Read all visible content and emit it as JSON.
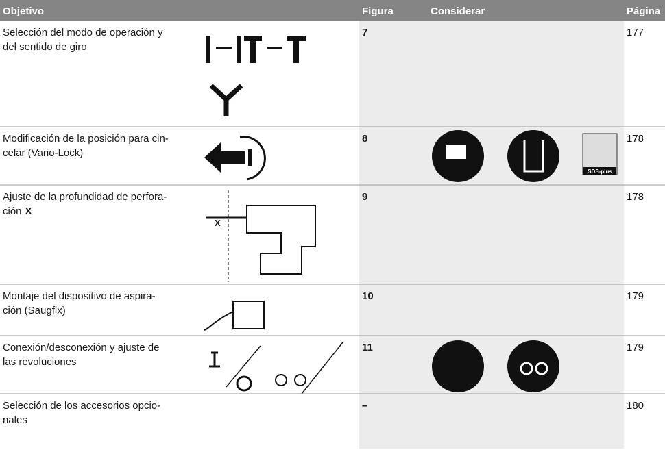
{
  "table": {
    "header": [
      "Objetivo",
      "Figura",
      "Considerar",
      "Página"
    ],
    "rows": [
      {
        "objective": [
          "Selección del modo de operación y",
          "del sentido de giro"
        ],
        "figure": "7",
        "page": "177"
      },
      {
        "objective": [
          "Modificación de la posición para cin-",
          "celar (Vario-Lock)"
        ],
        "figure": "8",
        "page": "178",
        "icon_label": "SDS-plus"
      },
      {
        "objective": [
          "Ajuste de la profundidad de perfora-",
          "ción"
        ],
        "emphasis": "X",
        "figure": "9",
        "page": "178",
        "icon_label": "X"
      },
      {
        "objective": [
          "Montaje del dispositivo de aspira-",
          "ción (Saugfix)"
        ],
        "figure": "10",
        "page": "179"
      },
      {
        "objective": [
          "Conexión/desconexión y ajuste de",
          "las revoluciones"
        ],
        "figure": "11",
        "page": "179"
      },
      {
        "objective": [
          "Selección de los accesorios opcio-",
          "nales"
        ],
        "figure": "–",
        "page": "180"
      }
    ]
  }
}
